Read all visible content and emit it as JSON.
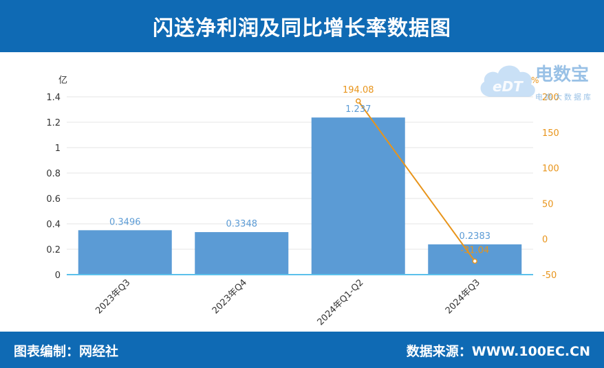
{
  "header": {
    "title": "闪送净利润及同比增长率数据图"
  },
  "footer": {
    "editor": "图表编制：网经社",
    "source": "数据来源：WWW.100EC.CN"
  },
  "watermark": {
    "brand": "电数宝",
    "tagline": "电商大数据库",
    "logo_text": "eDT"
  },
  "colors": {
    "header_bg": "#0f6ab4",
    "bar": "#5b9bd5",
    "line": "#e8941a",
    "axis": "#5bc0eb"
  },
  "chart_data": {
    "type": "bar",
    "categories": [
      "2023年Q3",
      "2023年Q4",
      "2024年Q1-Q2",
      "2024年Q3"
    ],
    "series": [
      {
        "values": [
          0.3496,
          0.3348,
          1.237,
          0.2383
        ],
        "axis": "left",
        "type": "bar",
        "labels": [
          "0.3496",
          "0.3348",
          "1.237",
          "0.2383"
        ]
      },
      {
        "values": [
          null,
          null,
          194.08,
          -31.04
        ],
        "axis": "right",
        "type": "line",
        "labels": [
          "",
          "",
          "194.08",
          "-31.04"
        ]
      }
    ],
    "y_left": {
      "unit": "亿",
      "ticks": [
        "0",
        "0.2",
        "0.4",
        "0.6",
        "0.8",
        "1",
        "1.2",
        "1.4"
      ],
      "lim": [
        0,
        1.4
      ]
    },
    "y_right": {
      "unit": "%",
      "ticks": [
        "-50",
        "0",
        "50",
        "100",
        "150",
        "200"
      ],
      "lim": [
        -50,
        200
      ]
    },
    "grid": true
  }
}
